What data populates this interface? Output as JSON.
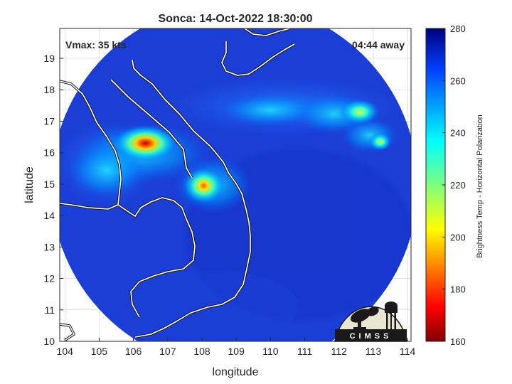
{
  "title": "Sonca: 14-Oct-2022 18:30:00",
  "annotations": {
    "vmax": "Vmax: 35 kts",
    "away": "04:44 away"
  },
  "axes": {
    "xlabel": "longitude",
    "ylabel": "latitude",
    "xlim": [
      103.85,
      114.1
    ],
    "ylim": [
      10,
      19.95
    ],
    "xticks": [
      "104",
      "105",
      "106",
      "107",
      "108",
      "109",
      "110",
      "111",
      "112",
      "113",
      "114"
    ],
    "yticks": [
      "10",
      "11",
      "12",
      "13",
      "14",
      "15",
      "16",
      "17",
      "18",
      "19"
    ],
    "grid": true
  },
  "colorbar": {
    "label": "Brightness Temp - Horizontal Polarization",
    "ticks": [
      "160",
      "180",
      "200",
      "220",
      "240",
      "260",
      "280"
    ],
    "range": [
      160,
      280
    ]
  },
  "logo": {
    "text": "CIMSS"
  },
  "swath": {
    "center_lon": 108.95,
    "center_lat": 14.95,
    "radius_deg": 5.35,
    "background_temp": 262
  },
  "features": [
    {
      "name": "cold-core-west",
      "lon": 106.35,
      "lat": 16.3,
      "temp": 178
    },
    {
      "name": "cold-core-coast",
      "lon": 108.05,
      "lat": 14.95,
      "temp": 192
    },
    {
      "name": "convection-east",
      "lon": 112.6,
      "lat": 17.3,
      "temp": 215
    },
    {
      "name": "convection-far-east",
      "lon": 113.2,
      "lat": 16.35,
      "temp": 205
    }
  ],
  "colors": {
    "swath_blue": "#1b3fd6",
    "coastline": "#ffffff",
    "border": "#1a1a1a"
  }
}
